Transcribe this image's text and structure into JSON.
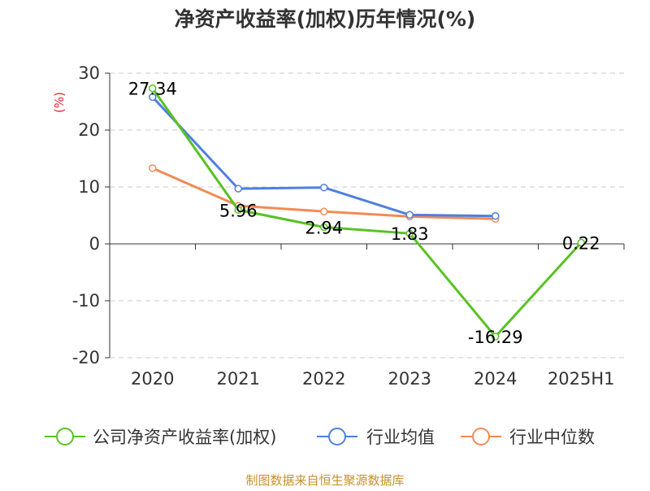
{
  "chart_data": {
    "type": "line",
    "title": "净资产收益率(加权)历年情况(%)",
    "ylabel": "(%)",
    "xlabel": "",
    "categories": [
      "2020",
      "2021",
      "2022",
      "2023",
      "2024",
      "2025H1"
    ],
    "ylim": [
      -20,
      30
    ],
    "yticks": [
      30,
      20,
      10,
      0,
      -10,
      -20
    ],
    "grid": true,
    "legend_position": "bottom",
    "series": [
      {
        "name": "公司净资产收益率(加权)",
        "color": "#58c224",
        "values": [
          27.34,
          5.96,
          2.94,
          1.83,
          -16.29,
          0.22
        ],
        "labels": [
          "27.34",
          "5.96",
          "2.94",
          "1.83",
          "-16.29",
          "0.22"
        ]
      },
      {
        "name": "行业均值",
        "color": "#4f7fe0",
        "values": [
          25.8,
          9.7,
          9.9,
          5.1,
          4.9,
          null
        ]
      },
      {
        "name": "行业中位数",
        "color": "#f28b55",
        "values": [
          13.3,
          6.7,
          5.7,
          4.8,
          4.4,
          null
        ]
      }
    ],
    "source": "制图数据来自恒生聚源数据库"
  }
}
